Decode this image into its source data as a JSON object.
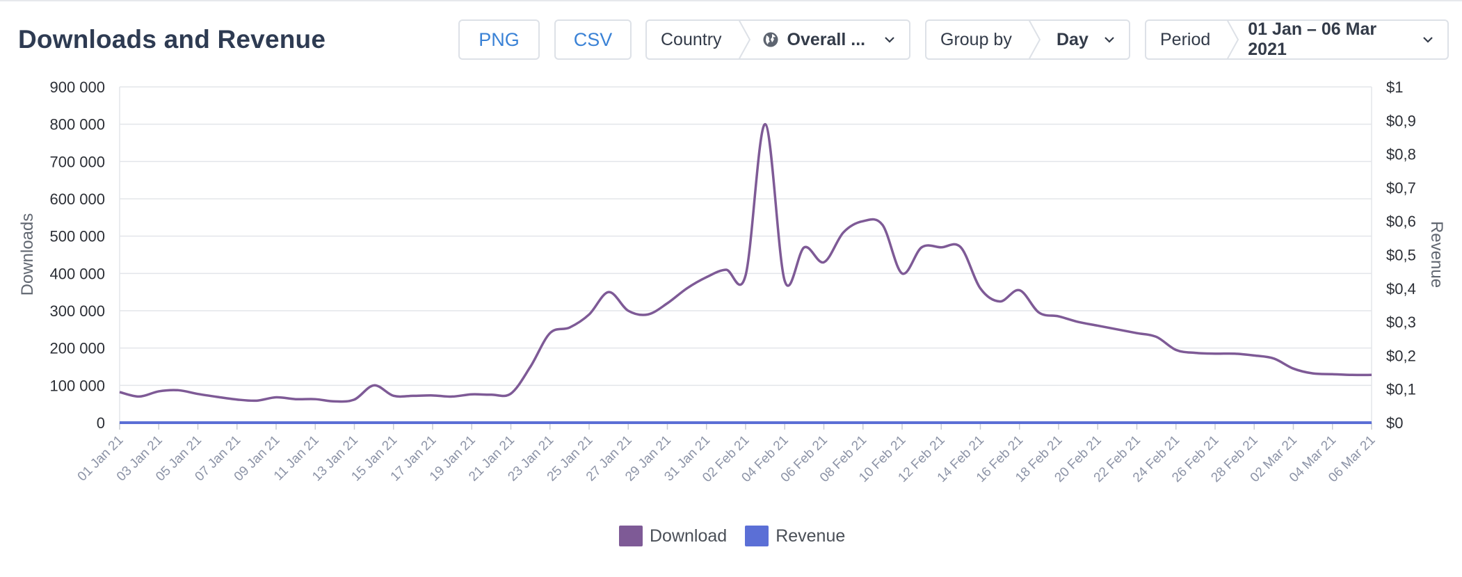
{
  "header": {
    "title": "Downloads and Revenue",
    "png_label": "PNG",
    "csv_label": "CSV",
    "country": {
      "label": "Country",
      "value": "Overall ..."
    },
    "group_by": {
      "label": "Group by",
      "value": "Day"
    },
    "period": {
      "label": "Period",
      "value": "01 Jan – 06 Mar 2021"
    }
  },
  "colors": {
    "download": "#7e5a96",
    "revenue": "#5b6fd6",
    "grid": "#e3e5ea",
    "button_text": "#3a82d6"
  },
  "icons": {
    "globe": "globe-icon",
    "chevron": "chevron-down-icon"
  },
  "legend": [
    {
      "name": "Download",
      "color": "#7e5a96"
    },
    {
      "name": "Revenue",
      "color": "#5b6fd6"
    }
  ],
  "chart_data": {
    "type": "line",
    "xlabel": "",
    "ylabel": "Downloads",
    "y2label": "Revenue",
    "ylim": [
      0,
      900000
    ],
    "y2lim": [
      0,
      1
    ],
    "y_ticks": [
      "0",
      "100 000",
      "200 000",
      "300 000",
      "400 000",
      "500 000",
      "600 000",
      "700 000",
      "800 000",
      "900 000"
    ],
    "y2_ticks": [
      "$0",
      "$0,1",
      "$0,2",
      "$0,3",
      "$0,4",
      "$0,5",
      "$0,6",
      "$0,7",
      "$0,8",
      "$0,9",
      "$1"
    ],
    "grid": true,
    "legend_position": "bottom-center",
    "x_tick_labels": [
      "01 Jan 21",
      "03 Jan 21",
      "05 Jan 21",
      "07 Jan 21",
      "09 Jan 21",
      "11 Jan 21",
      "13 Jan 21",
      "15 Jan 21",
      "17 Jan 21",
      "19 Jan 21",
      "21 Jan 21",
      "23 Jan 21",
      "25 Jan 21",
      "27 Jan 21",
      "29 Jan 21",
      "31 Jan 21",
      "02 Feb 21",
      "04 Feb 21",
      "06 Feb 21",
      "08 Feb 21",
      "10 Feb 21",
      "12 Feb 21",
      "14 Feb 21",
      "16 Feb 21",
      "18 Feb 21",
      "20 Feb 21",
      "22 Feb 21",
      "24 Feb 21",
      "26 Feb 21",
      "28 Feb 21",
      "02 Mar 21",
      "04 Mar 21",
      "06 Mar 21"
    ],
    "x": [
      "2021-01-01",
      "2021-01-02",
      "2021-01-03",
      "2021-01-04",
      "2021-01-05",
      "2021-01-06",
      "2021-01-07",
      "2021-01-08",
      "2021-01-09",
      "2021-01-10",
      "2021-01-11",
      "2021-01-12",
      "2021-01-13",
      "2021-01-14",
      "2021-01-15",
      "2021-01-16",
      "2021-01-17",
      "2021-01-18",
      "2021-01-19",
      "2021-01-20",
      "2021-01-21",
      "2021-01-22",
      "2021-01-23",
      "2021-01-24",
      "2021-01-25",
      "2021-01-26",
      "2021-01-27",
      "2021-01-28",
      "2021-01-29",
      "2021-01-30",
      "2021-01-31",
      "2021-02-01",
      "2021-02-02",
      "2021-02-03",
      "2021-02-04",
      "2021-02-05",
      "2021-02-06",
      "2021-02-07",
      "2021-02-08",
      "2021-02-09",
      "2021-02-10",
      "2021-02-11",
      "2021-02-12",
      "2021-02-13",
      "2021-02-14",
      "2021-02-15",
      "2021-02-16",
      "2021-02-17",
      "2021-02-18",
      "2021-02-19",
      "2021-02-20",
      "2021-02-21",
      "2021-02-22",
      "2021-02-23",
      "2021-02-24",
      "2021-02-25",
      "2021-02-26",
      "2021-02-27",
      "2021-02-28",
      "2021-03-01",
      "2021-03-02",
      "2021-03-03",
      "2021-03-04",
      "2021-03-05",
      "2021-03-06"
    ],
    "series": [
      {
        "name": "Download",
        "axis": "left",
        "values": [
          82000,
          70000,
          84000,
          87000,
          77000,
          69000,
          62000,
          59000,
          68000,
          63000,
          63000,
          57000,
          62000,
          100000,
          72000,
          72000,
          73000,
          70000,
          76000,
          75000,
          78000,
          150000,
          240000,
          255000,
          290000,
          350000,
          300000,
          290000,
          320000,
          360000,
          390000,
          410000,
          395000,
          800000,
          380000,
          470000,
          430000,
          510000,
          540000,
          530000,
          400000,
          470000,
          470000,
          470000,
          360000,
          325000,
          355000,
          295000,
          285000,
          270000,
          260000,
          250000,
          240000,
          230000,
          195000,
          187000,
          185000,
          185000,
          180000,
          172000,
          145000,
          132000,
          130000,
          128000,
          128000
        ]
      },
      {
        "name": "Revenue",
        "axis": "right",
        "values": [
          0,
          0,
          0,
          0,
          0,
          0,
          0,
          0,
          0,
          0,
          0,
          0,
          0,
          0,
          0,
          0,
          0,
          0,
          0,
          0,
          0,
          0,
          0,
          0,
          0,
          0,
          0,
          0,
          0,
          0,
          0,
          0,
          0,
          0,
          0,
          0,
          0,
          0,
          0,
          0,
          0,
          0,
          0,
          0,
          0,
          0,
          0,
          0,
          0,
          0,
          0,
          0,
          0,
          0,
          0,
          0,
          0,
          0,
          0,
          0,
          0,
          0,
          0,
          0,
          0
        ]
      }
    ]
  }
}
